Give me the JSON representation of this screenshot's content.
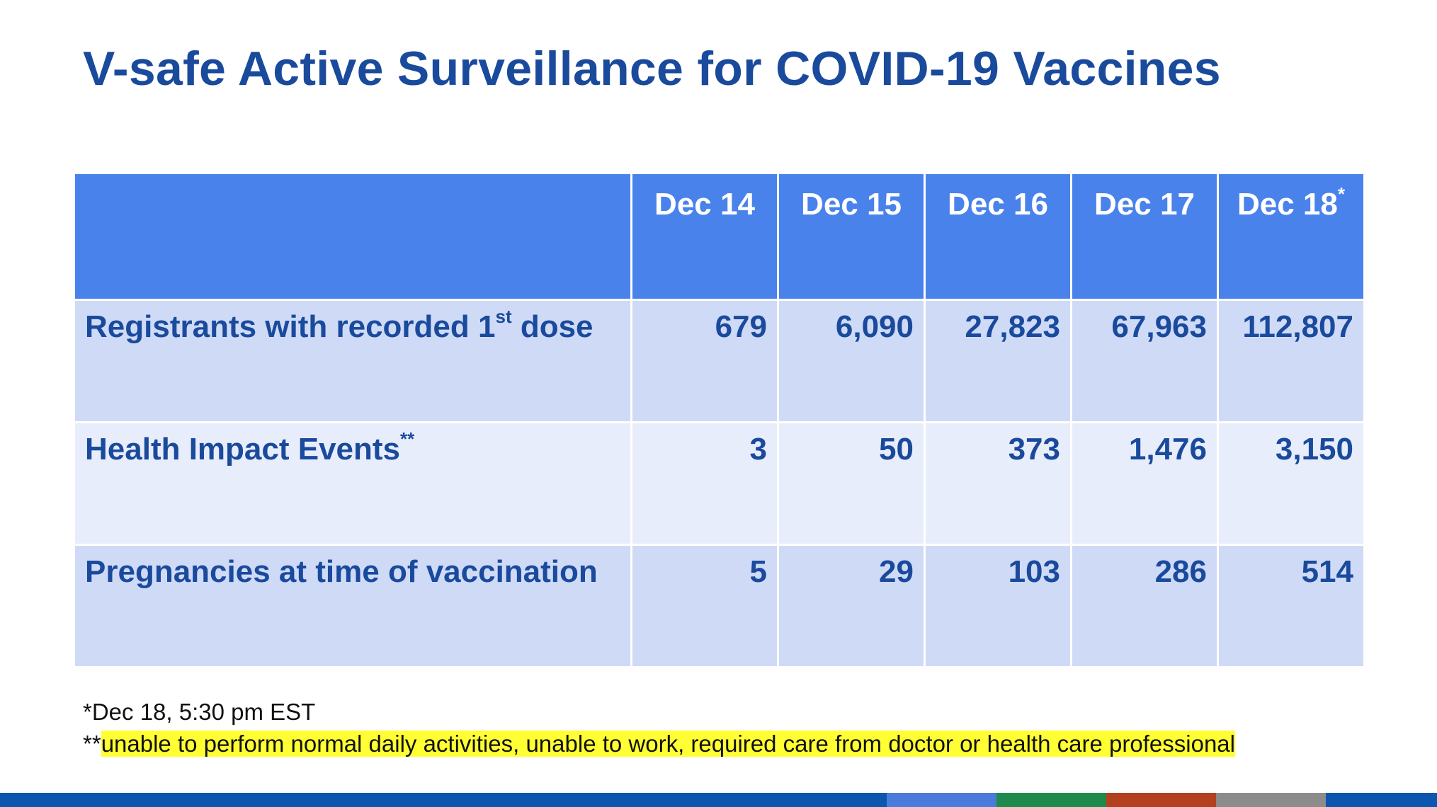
{
  "slide": {
    "title": "V-safe Active Surveillance for COVID-19 Vaccines"
  },
  "table": {
    "columns": [
      "Dec 14",
      "Dec 15",
      "Dec 16",
      "Dec 17",
      "Dec 18"
    ],
    "last_column_marker": "*",
    "rows": [
      {
        "label": "Registrants with recorded 1",
        "label_sup": "st",
        "label_suffix": " dose",
        "values": [
          "679",
          "6,090",
          "27,823",
          "67,963",
          "112,807"
        ]
      },
      {
        "label": "Health Impact Events",
        "label_sup": "**",
        "label_suffix": "",
        "values": [
          "3",
          "50",
          "373",
          "1,476",
          "3,150"
        ]
      },
      {
        "label": "Pregnancies at time of vaccination",
        "label_sup": "",
        "label_suffix": "",
        "values": [
          "5",
          "29",
          "103",
          "286",
          "514"
        ]
      }
    ]
  },
  "footnotes": {
    "note1": "*Dec 18, 5:30 pm EST",
    "note2_prefix": "**",
    "note2_highlighted": "unable to perform normal daily activities, unable to work, required care from doctor or health care professional"
  },
  "colors": {
    "title": "#1a4a9c",
    "header_bg": "#4a82ec",
    "row_light": "#cfdaf7",
    "row_lighter": "#e8edfb",
    "highlight": "#ffff33",
    "footer_segments": [
      "#0b57b0",
      "#4a7bdc",
      "#1e8a4c",
      "#b3401e",
      "#8c8c8c",
      "#0b57b0"
    ]
  }
}
